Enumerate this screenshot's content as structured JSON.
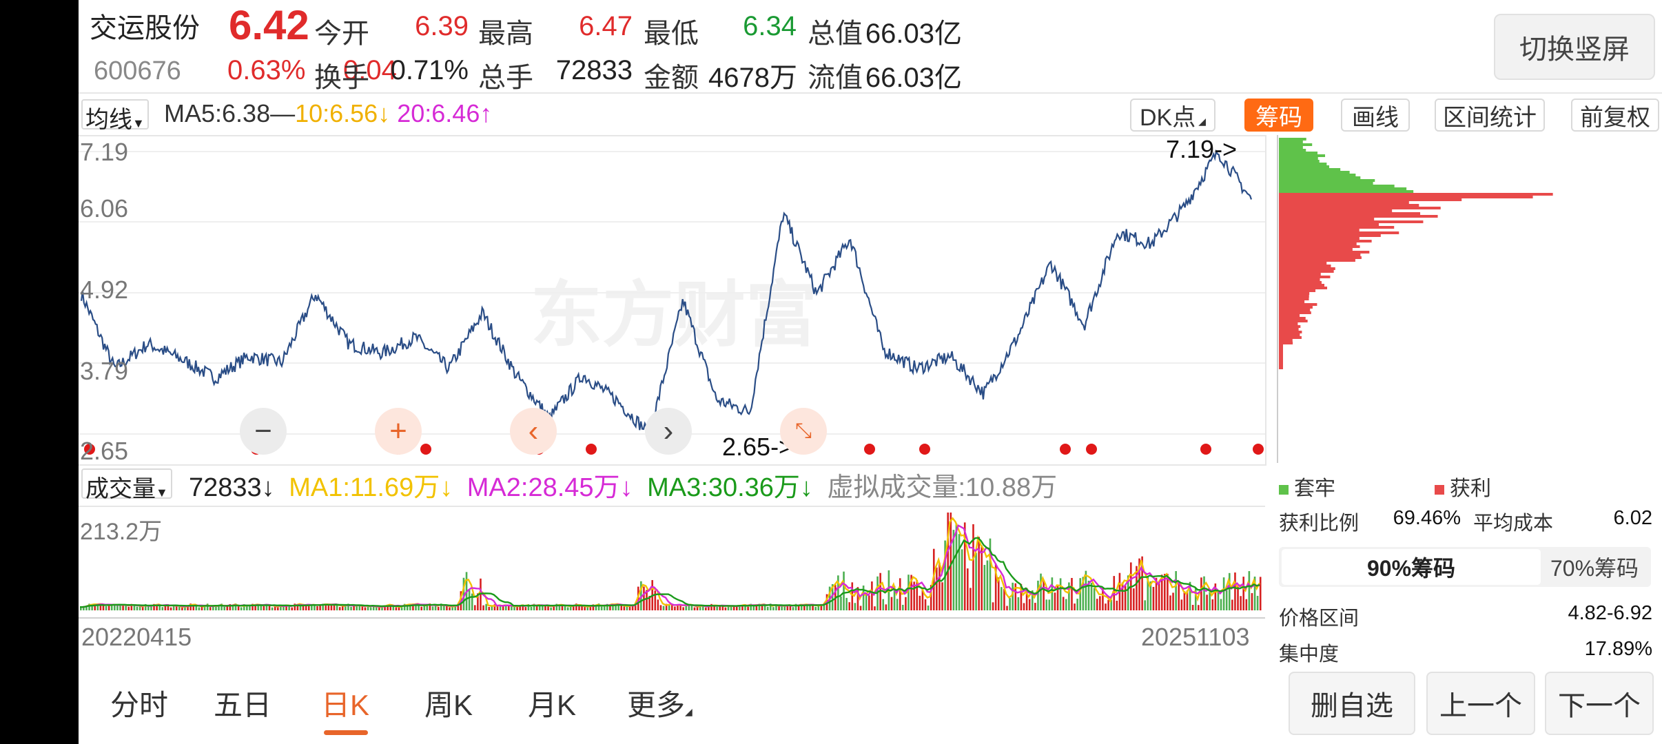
{
  "stock": {
    "name": "交运股份",
    "price": "6.42",
    "code": "600676",
    "change_pct": "0.63%",
    "change": "0.04"
  },
  "quote": {
    "open_label": "今开",
    "open": "6.39",
    "high_label": "最高",
    "high": "6.47",
    "low_label": "最低",
    "low": "6.34",
    "mktcap_label": "总值",
    "mktcap": "66.03亿",
    "turnover_label": "换手",
    "turnover": "0.71%",
    "volume_label": "总手",
    "volume": "72833",
    "amount_label": "金额",
    "amount": "4678万",
    "float_label": "流值",
    "float_cap": "66.03亿"
  },
  "switch_label": "切换竖屏",
  "ma_bar": {
    "type": "均线",
    "ma5": "MA5:6.38—",
    "ma10": "10:6.56",
    "ma10_arrow": "↓",
    "ma20": "20:6.46",
    "ma20_arrow": "↑"
  },
  "tools": {
    "dk": "DK点",
    "chip": "筹码",
    "draw": "画线",
    "range": "区间统计",
    "adjust": "前复权"
  },
  "price_axis": [
    "7.19",
    "6.06",
    "4.92",
    "3.79",
    "2.65"
  ],
  "price_marks": {
    "high": "7.19->",
    "low": "2.65->"
  },
  "watermark": "东方财富",
  "volume_bar": {
    "type": "成交量",
    "vol": "72833",
    "vol_arrow": "↓",
    "ma1": "MA1:11.69万",
    "ma1_arrow": "↓",
    "ma2": "MA2:28.45万",
    "ma2_arrow": "↓",
    "ma3": "MA3:30.36万",
    "ma3_arrow": "↓",
    "virtual": "虚拟成交量:10.88万"
  },
  "volume_axis": "213.2万",
  "dates": {
    "start": "20220415",
    "end": "20251103"
  },
  "tabs": [
    "分时",
    "五日",
    "日K",
    "周K",
    "月K",
    "更多"
  ],
  "active_tab": "日K",
  "chip_panel": {
    "legend_trapped": "套牢",
    "legend_profit": "获利",
    "profit_ratio_label": "获利比例",
    "profit_ratio": "69.46%",
    "avg_cost_label": "平均成本",
    "avg_cost": "6.02",
    "seg_90": "90%筹码",
    "seg_70": "70%筹码",
    "range_label": "价格区间",
    "range": "4.82-6.92",
    "concentration_label": "集中度",
    "concentration": "17.89%"
  },
  "actions": {
    "remove": "删自选",
    "prev": "上一个",
    "next": "下一个"
  },
  "colors": {
    "up": "#e02b2b",
    "down": "#1a9a33",
    "accent": "#ff6a13",
    "price_line": "#2a4d86",
    "ma1": "#f2c200",
    "ma2": "#d62ad6",
    "ma3": "#1a9a1a"
  },
  "chart_data": {
    "type": "line",
    "title": "",
    "y_ticks": [
      7.19,
      6.06,
      4.92,
      3.79,
      2.65
    ],
    "ylim": [
      2.65,
      7.19
    ],
    "x_labels": [
      "20220415",
      "20251103"
    ],
    "series": [
      {
        "values": [
          4.9,
          3.7,
          4.1,
          3.85,
          3.55,
          3.9,
          3.8,
          4.9,
          4.1,
          3.95,
          4.2,
          3.7,
          4.6,
          3.6,
          2.9,
          3.6,
          3.2,
          2.65,
          4.8,
          3.2,
          3.0,
          6.2,
          4.9,
          5.8,
          4.0,
          3.7,
          3.9,
          3.3,
          4.2,
          5.4,
          4.4,
          5.9,
          5.7,
          6.3,
          7.19,
          6.42
        ]
      }
    ],
    "max_mark": 7.19,
    "min_mark": 2.65
  }
}
